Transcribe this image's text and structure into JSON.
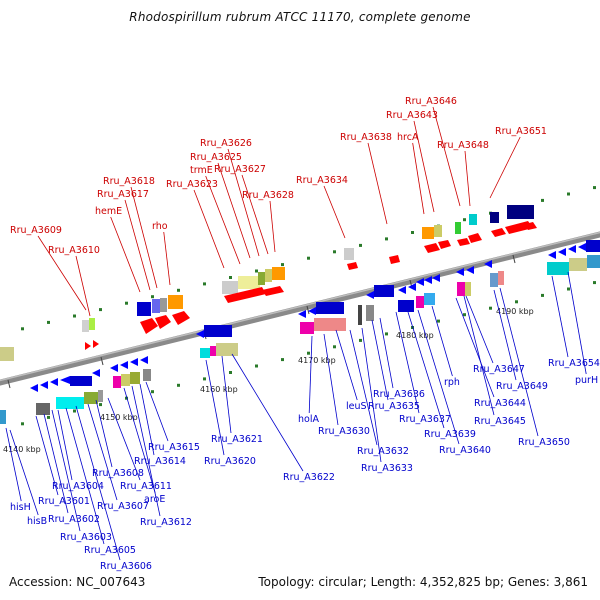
{
  "title": "Rhodospirillum rubrum ATCC 11170, complete genome",
  "footer": {
    "accession": "Accession: NC_007643",
    "summary": "Topology: circular; Length: 4,352,825 bp; Genes: 3,861"
  },
  "colors": {
    "top_label": "#cc0000",
    "bottom_label": "#0000cc",
    "axis": "#888888",
    "tick": "#2a7a2a"
  },
  "scale_labels": [
    "4140 kbp",
    "4150 kbp",
    "4160 kbp",
    "4170 kbp",
    "4180 kbp",
    "4190 kbp"
  ],
  "genes_top_strand": [
    "Rru_A3609",
    "Rru_A3610",
    "hemE",
    "Rru_A3617",
    "Rru_A3618",
    "rho",
    "Rru_A3623",
    "trmE",
    "Rru_A3625",
    "Rru_A3626",
    "Rru_A3627",
    "Rru_A3628",
    "Rru_A3634",
    "Rru_A3638",
    "hrcA",
    "Rru_A3643",
    "Rru_A3646",
    "Rru_A3648",
    "Rru_A3651"
  ],
  "genes_bottom_strand": [
    "hisH",
    "hisB",
    "Rru_A3601",
    "Rru_A3602",
    "Rru_A3603",
    "Rru_A3604",
    "Rru_A3605",
    "Rru_A3606",
    "Rru_A3607",
    "Rru_A3608",
    "Rru_A3611",
    "aroE",
    "Rru_A3612",
    "Rru_A3614",
    "Rru_A3615",
    "Rru_A3620",
    "Rru_A3621",
    "Rru_A3622",
    "holA",
    "Rru_A3630",
    "leuS",
    "Rru_A3632",
    "Rru_A3633",
    "Rru_A3635",
    "Rru_A3636",
    "Rru_A3637",
    "Rru_A3639",
    "Rru_A3640",
    "rph",
    "Rru_A3644",
    "Rru_A3645",
    "Rru_A3647",
    "Rru_A3649",
    "Rru_A3650",
    "Rru_A3654",
    "purH"
  ]
}
